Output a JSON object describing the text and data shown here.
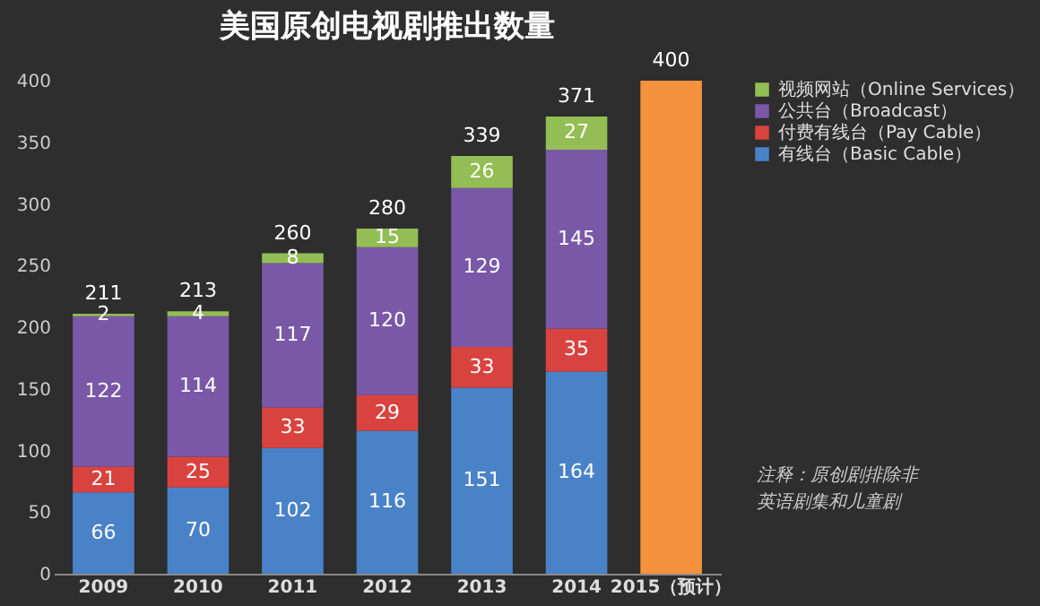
{
  "chart_data": {
    "type": "bar",
    "title": "美国原创电视剧推出数量",
    "categories": [
      "2009",
      "2010",
      "2011",
      "2012",
      "2013",
      "2014",
      "2015（预计）"
    ],
    "stacked": true,
    "series": [
      {
        "name": "有线台（Basic Cable）",
        "color": "#4a82c8",
        "values": [
          66,
          70,
          102,
          116,
          151,
          164,
          null
        ],
        "value_labels": [
          "66",
          "70",
          "102",
          "116",
          "151",
          "164",
          null
        ]
      },
      {
        "name": "付费有线台（Pay Cable）",
        "color": "#d8433f",
        "values": [
          21,
          25,
          33,
          29,
          33,
          35,
          null
        ],
        "value_labels": [
          "21",
          "25",
          "33",
          "29",
          "33",
          "35",
          null
        ]
      },
      {
        "name": "公共台（Broadcast）",
        "color": "#7a58a8",
        "values": [
          122,
          114,
          117,
          120,
          129,
          145,
          null
        ],
        "value_labels": [
          "122",
          "114",
          "117",
          "120",
          "129",
          "145",
          null
        ]
      },
      {
        "name": "视频网站（Online Services）",
        "color": "#93bd55",
        "values": [
          2,
          4,
          8,
          15,
          26,
          27,
          null
        ],
        "value_labels": [
          "2",
          "4",
          "8",
          "15",
          "26",
          "27",
          null
        ]
      },
      {
        "color": "#f5923e",
        "values": [
          null,
          null,
          null,
          null,
          null,
          null,
          400
        ]
      }
    ],
    "totals": [
      "211",
      "213",
      "260",
      "280",
      "339",
      "371",
      "400"
    ],
    "ylim": [
      0,
      400
    ],
    "yticks": [
      0,
      50,
      100,
      150,
      200,
      250,
      300,
      350,
      400
    ],
    "grid": false,
    "legend": "right",
    "annotations": [
      "注释：原创剧排除非英语剧集和儿童剧"
    ]
  }
}
